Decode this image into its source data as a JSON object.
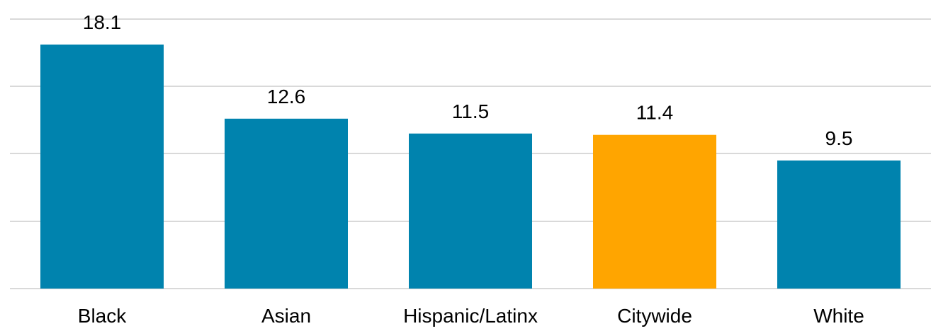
{
  "chart_data": {
    "type": "bar",
    "categories": [
      "Black",
      "Asian",
      "Hispanic/Latinx",
      "Citywide",
      "White"
    ],
    "values": [
      18.1,
      12.6,
      11.5,
      11.4,
      9.5
    ],
    "colors": [
      "#0083ae",
      "#0083ae",
      "#0083ae",
      "#ffa500",
      "#0083ae"
    ],
    "title": "",
    "xlabel": "",
    "ylabel": "",
    "ylim": [
      0,
      20
    ],
    "grid": true,
    "y_gridline_step": 5,
    "data_labels": [
      "18.1",
      "12.6",
      "11.5",
      "11.4",
      "9.5"
    ],
    "legend": "none"
  }
}
